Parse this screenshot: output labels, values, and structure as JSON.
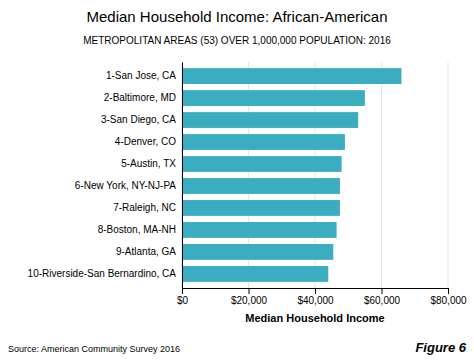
{
  "chart_data": {
    "type": "bar",
    "orientation": "horizontal",
    "title": "Median Household Income: African-American",
    "subtitle": "METROPOLITAN AREAS (53) OVER 1,000,000 POPULATION: 2016",
    "xlabel": "Median Household Income",
    "categories": [
      "10-Riverside-San Bernardino, CA",
      "9-Atlanta, GA",
      "8-Boston, MA-NH",
      "7-Raleigh, NC",
      "6-New York, NY-NJ-PA",
      "5-Austin, TX",
      "4-Denver, CO",
      "3-San Diego, CA",
      "2-Baltimore, MD",
      "1-San Jose, CA"
    ],
    "values": [
      44000,
      45500,
      46500,
      47500,
      47500,
      48000,
      49000,
      53000,
      55000,
      66000
    ],
    "color": "#3aaec0",
    "xlim": [
      0,
      80000
    ],
    "xticks": [
      {
        "value": 0,
        "label": "$0"
      },
      {
        "value": 20000,
        "label": "$20,000"
      },
      {
        "value": 40000,
        "label": "$40,000"
      },
      {
        "value": 60000,
        "label": "$60,000"
      },
      {
        "value": 80000,
        "label": "$80,000"
      }
    ],
    "grid": true,
    "source": "Source: American Community Survey 2016",
    "figure_label": "Figure 6"
  }
}
